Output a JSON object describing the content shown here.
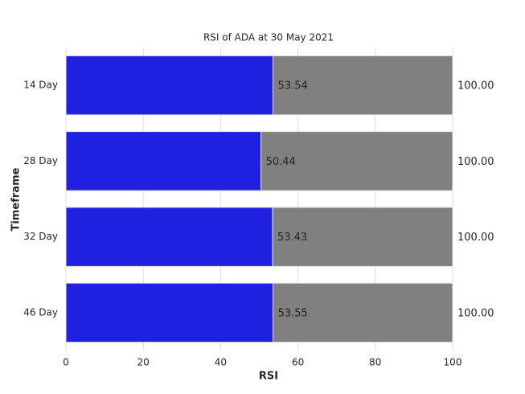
{
  "chart_data": {
    "type": "bar",
    "orientation": "horizontal",
    "title": "RSI of ADA at 30 May 2021",
    "xlabel": "RSI",
    "ylabel": "Timeframe",
    "categories": [
      "14 Day",
      "28 Day",
      "32 Day",
      "46 Day"
    ],
    "series": [
      {
        "color": "#808080",
        "values": [
          100,
          100,
          100,
          100
        ],
        "value_labels": [
          "100.00",
          "100.00",
          "100.00",
          "100.00"
        ]
      },
      {
        "color": "#2020e0",
        "values": [
          53.54,
          50.44,
          53.43,
          53.55
        ],
        "value_labels": [
          "53.54",
          "50.44",
          "53.43",
          "53.55"
        ]
      }
    ],
    "xlim": [
      0,
      100
    ],
    "xticks": [
      0,
      20,
      40,
      60,
      80,
      100
    ],
    "grid": true
  }
}
